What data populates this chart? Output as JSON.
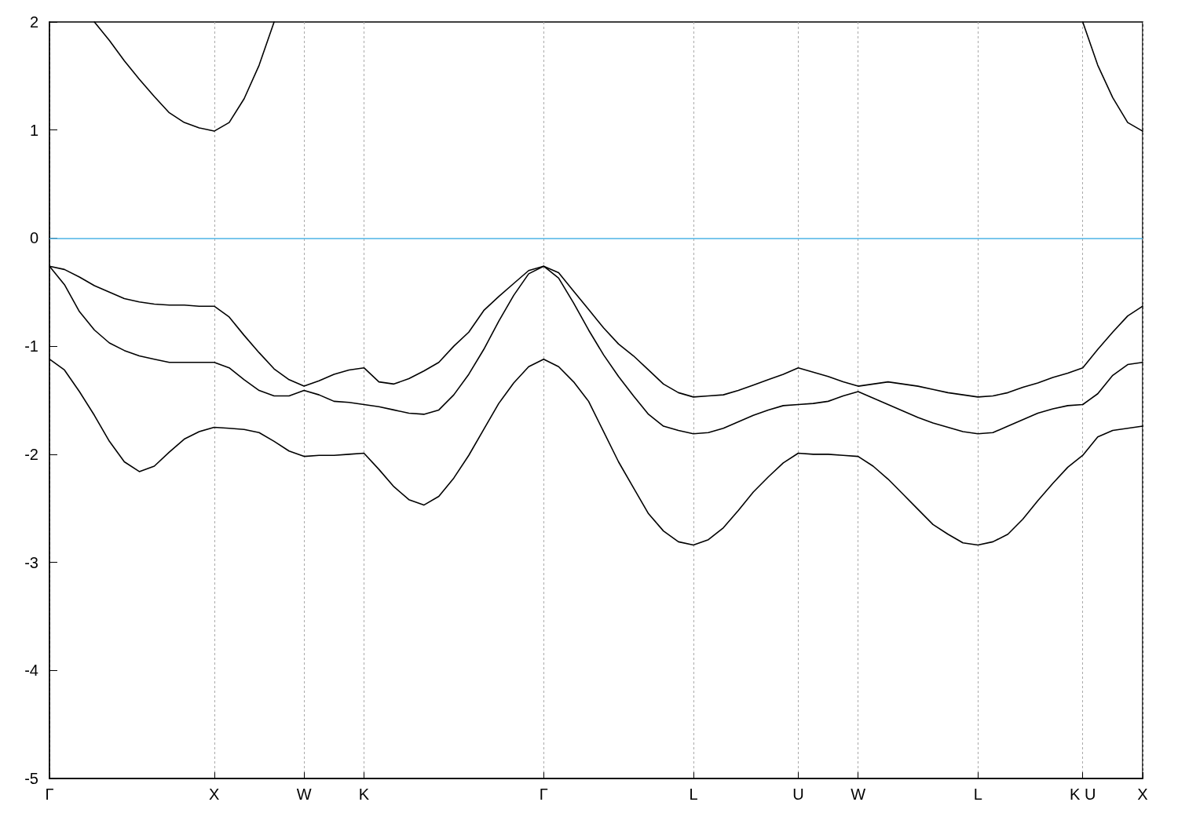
{
  "chart_data": {
    "type": "line",
    "ylim": [
      -5,
      2
    ],
    "categories": [
      "Γ",
      null,
      null,
      null,
      null,
      null,
      null,
      null,
      null,
      null,
      null,
      "X",
      null,
      null,
      null,
      null,
      null,
      "W",
      null,
      null,
      null,
      "K",
      null,
      null,
      null,
      null,
      null,
      null,
      null,
      null,
      null,
      null,
      null,
      "Γ",
      null,
      null,
      null,
      null,
      null,
      null,
      null,
      null,
      null,
      "L",
      null,
      null,
      null,
      null,
      null,
      null,
      "U",
      null,
      null,
      null,
      "W",
      null,
      null,
      null,
      null,
      null,
      null,
      null,
      "L",
      null,
      null,
      null,
      null,
      null,
      null,
      "K U",
      null,
      null,
      null,
      "X"
    ],
    "yticks": [
      -5,
      -4,
      -3,
      -2,
      -1,
      0,
      1,
      2
    ],
    "grid": "x",
    "marker": "none",
    "line_style": "solid",
    "ref_lines": [
      {
        "axis": "y",
        "value": 0,
        "color": "#4db3e6"
      }
    ],
    "series": [
      {
        "color": "#000000",
        "values": [
          -1.12,
          -1.22,
          -1.42,
          -1.64,
          -1.88,
          -2.07,
          -2.16,
          -2.11,
          -1.98,
          -1.86,
          -1.79,
          -1.75,
          -1.76,
          -1.77,
          -1.8,
          -1.88,
          -1.97,
          -2.02,
          -2.01,
          -2.01,
          -2.0,
          -1.99,
          -2.14,
          -2.3,
          -2.42,
          -2.47,
          -2.39,
          -2.22,
          -2.01,
          -1.77,
          -1.53,
          -1.34,
          -1.19,
          -1.12,
          -1.19,
          -1.33,
          -1.51,
          -1.79,
          -2.07,
          -2.31,
          -2.55,
          -2.71,
          -2.81,
          -2.84,
          -2.79,
          -2.68,
          -2.52,
          -2.35,
          -2.21,
          -2.08,
          -1.99,
          -2.0,
          -2.0,
          -2.01,
          -2.02,
          -2.11,
          -2.23,
          -2.37,
          -2.51,
          -2.65,
          -2.74,
          -2.82,
          -2.84,
          -2.81,
          -2.74,
          -2.6,
          -2.43,
          -2.27,
          -2.12,
          -2.01,
          -1.84,
          -1.78,
          -1.76,
          -1.74
        ]
      },
      {
        "color": "#000000",
        "values": [
          -0.26,
          -0.43,
          -0.68,
          -0.85,
          -0.97,
          -1.04,
          -1.09,
          -1.12,
          -1.15,
          -1.15,
          -1.15,
          -1.15,
          -1.2,
          -1.31,
          -1.41,
          -1.46,
          -1.46,
          -1.41,
          -1.45,
          -1.51,
          -1.52,
          -1.54,
          -1.56,
          -1.59,
          -1.62,
          -1.63,
          -1.59,
          -1.45,
          -1.26,
          -1.03,
          -0.77,
          -0.53,
          -0.33,
          -0.26,
          -0.37,
          -0.6,
          -0.85,
          -1.08,
          -1.28,
          -1.46,
          -1.63,
          -1.74,
          -1.78,
          -1.81,
          -1.8,
          -1.76,
          -1.7,
          -1.64,
          -1.59,
          -1.55,
          -1.54,
          -1.53,
          -1.51,
          -1.46,
          -1.42,
          -1.48,
          -1.54,
          -1.6,
          -1.66,
          -1.71,
          -1.75,
          -1.79,
          -1.81,
          -1.8,
          -1.74,
          -1.68,
          -1.62,
          -1.58,
          -1.55,
          -1.54,
          -1.44,
          -1.27,
          -1.17,
          -1.15
        ]
      },
      {
        "color": "#000000",
        "values": [
          -0.26,
          -0.29,
          -0.36,
          -0.44,
          -0.5,
          -0.56,
          -0.59,
          -0.61,
          -0.62,
          -0.62,
          -0.63,
          -0.63,
          -0.73,
          -0.9,
          -1.06,
          -1.21,
          -1.31,
          -1.37,
          -1.32,
          -1.26,
          -1.22,
          -1.2,
          -1.33,
          -1.35,
          -1.3,
          -1.23,
          -1.15,
          -1.0,
          -0.87,
          -0.67,
          -0.54,
          -0.42,
          -0.3,
          -0.26,
          -0.32,
          -0.49,
          -0.66,
          -0.83,
          -0.98,
          -1.09,
          -1.22,
          -1.35,
          -1.43,
          -1.47,
          -1.46,
          -1.45,
          -1.41,
          -1.36,
          -1.31,
          -1.26,
          -1.2,
          -1.24,
          -1.28,
          -1.33,
          -1.37,
          -1.35,
          -1.33,
          -1.35,
          -1.37,
          -1.4,
          -1.43,
          -1.45,
          -1.47,
          -1.46,
          -1.43,
          -1.38,
          -1.34,
          -1.29,
          -1.25,
          -1.2,
          -1.03,
          -0.87,
          -0.72,
          -0.63
        ]
      },
      {
        "color": "#000000",
        "values": [
          null,
          null,
          null,
          2.0,
          1.83,
          1.64,
          1.47,
          1.31,
          1.16,
          1.07,
          1.02,
          0.99,
          1.07,
          1.29,
          1.6,
          2.0,
          null,
          null,
          null,
          null,
          null,
          null,
          null,
          null,
          null,
          null,
          null,
          null,
          null,
          null,
          null,
          null,
          null,
          null,
          null,
          null,
          null,
          null,
          null,
          null,
          null,
          null,
          null,
          null,
          null,
          null,
          null,
          null,
          null,
          null,
          null,
          null,
          null,
          null,
          null,
          null,
          null,
          null,
          null,
          null,
          null,
          null,
          null,
          null,
          null,
          null,
          null,
          null,
          null,
          2.0,
          1.6,
          1.3,
          1.07,
          0.99
        ]
      }
    ]
  }
}
